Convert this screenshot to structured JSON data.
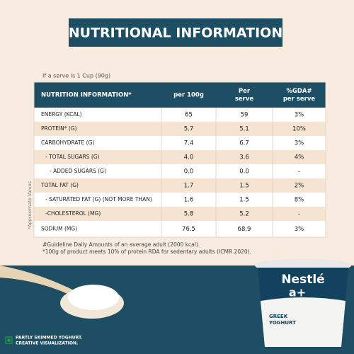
{
  "title": "NUTRITIONAL INFORMATION",
  "serve_note": "If a serve is 1 Cup (90g)",
  "side_note": "*Approximate Values",
  "table": {
    "header": [
      [
        "NUTRITION INFORMATION*"
      ],
      [
        "per 100g"
      ],
      [
        "Per",
        "serve"
      ],
      [
        "%GDA#",
        "per serve"
      ]
    ],
    "rows": [
      [
        "ENERGY (KCAL)",
        "65",
        "59",
        "3%"
      ],
      [
        "PROTEIN* (G)",
        "5.7",
        "5.1",
        "10%"
      ],
      [
        "CARBOHYDRATE (G)",
        "7.4",
        "6.7",
        "3%"
      ],
      [
        "- TOTAL SUGARS (G)",
        "4.0",
        "3.6",
        "4%"
      ],
      [
        "- ADDED SUGARS (G)",
        "0.0",
        "0.0",
        "-"
      ],
      [
        "TOTAL FAT (G)",
        "1.7",
        "1.5",
        "2%"
      ],
      [
        "- SATURATED FAT (G) (NOT MORE THAN)",
        "1.6",
        "1.5",
        "8%"
      ],
      [
        "-CHOLESTEROL (MG)",
        "5.8",
        "5.2",
        "-"
      ],
      [
        "SODIUM (MG)",
        "76.5",
        "68.9",
        "3%"
      ]
    ]
  },
  "footnotes": [
    "#Guideline Daily Amounts of an average adult (2000 kcal).",
    "*100g of product meets 10% of protein RDA for sedentary adults (ICMR 2020)."
  ],
  "product": {
    "brand": "Nestlé",
    "variant": "a+",
    "name": [
      "GREEK",
      "YOGHURT"
    ]
  },
  "disclaimer": [
    "PARTLY SKIMMED YOGHURT.",
    "CREATIVE VISUALIZATION."
  ]
}
